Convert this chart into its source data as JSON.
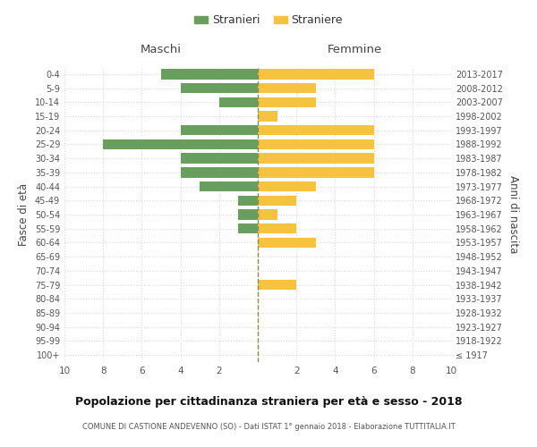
{
  "age_groups": [
    "100+",
    "95-99",
    "90-94",
    "85-89",
    "80-84",
    "75-79",
    "70-74",
    "65-69",
    "60-64",
    "55-59",
    "50-54",
    "45-49",
    "40-44",
    "35-39",
    "30-34",
    "25-29",
    "20-24",
    "15-19",
    "10-14",
    "5-9",
    "0-4"
  ],
  "birth_years": [
    "≤ 1917",
    "1918-1922",
    "1923-1927",
    "1928-1932",
    "1933-1937",
    "1938-1942",
    "1943-1947",
    "1948-1952",
    "1953-1957",
    "1958-1962",
    "1963-1967",
    "1968-1972",
    "1973-1977",
    "1978-1982",
    "1983-1987",
    "1988-1992",
    "1993-1997",
    "1998-2002",
    "2003-2007",
    "2008-2012",
    "2013-2017"
  ],
  "maschi": [
    0,
    0,
    0,
    0,
    0,
    0,
    0,
    0,
    0,
    1,
    1,
    1,
    3,
    4,
    4,
    8,
    4,
    0,
    2,
    4,
    5
  ],
  "femmine": [
    0,
    0,
    0,
    0,
    0,
    2,
    0,
    0,
    3,
    2,
    1,
    2,
    3,
    6,
    6,
    6,
    6,
    1,
    3,
    3,
    6
  ],
  "male_color": "#6a9e5f",
  "female_color": "#f5c242",
  "dashed_line_color": "#8a8a4a",
  "title": "Popolazione per cittadinanza straniera per età e sesso - 2018",
  "subtitle": "COMUNE DI CASTIONE ANDEVENNO (SO) - Dati ISTAT 1° gennaio 2018 - Elaborazione TUTTITALIA.IT",
  "header_left": "Maschi",
  "header_right": "Femmine",
  "ylabel_left": "Fasce di età",
  "ylabel_right": "Anni di nascita",
  "legend_male": "Stranieri",
  "legend_female": "Straniere",
  "xlim": 10,
  "bg_color": "#ffffff",
  "grid_color": "#d8d8d8"
}
